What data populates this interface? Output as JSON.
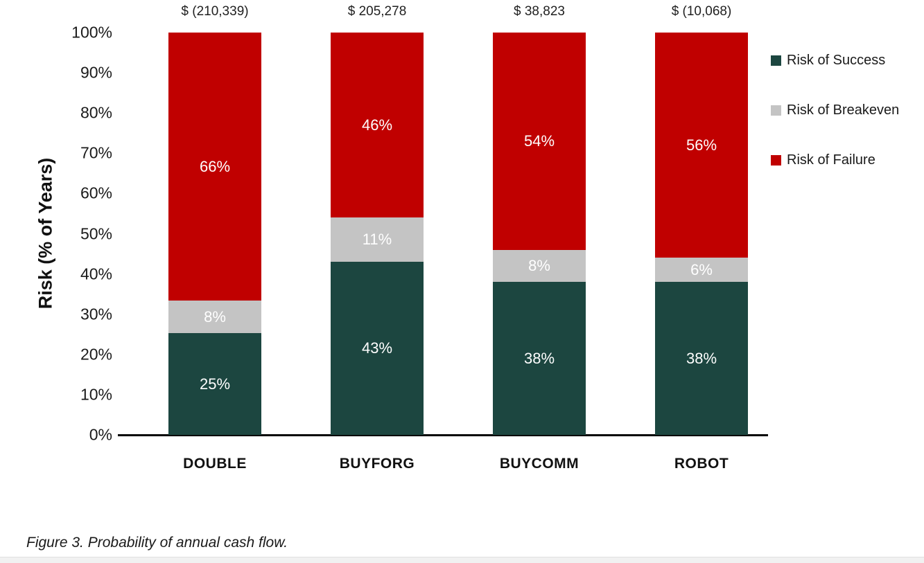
{
  "chart_data": {
    "type": "bar",
    "stacked": true,
    "categories": [
      "DOUBLE",
      "BUYFORG",
      "BUYCOMM",
      "ROBOT"
    ],
    "series": [
      {
        "name": "Risk of Success",
        "color": "#1C4640",
        "values": [
          25,
          43,
          38,
          38
        ]
      },
      {
        "name": "Risk of Breakeven",
        "color": "#C4C4C4",
        "values": [
          8,
          11,
          8,
          6
        ]
      },
      {
        "name": "Risk of Failure",
        "color": "#C00000",
        "values": [
          66,
          46,
          54,
          56
        ]
      }
    ],
    "segment_label_suffix": "%",
    "segment_label_color": "#FFFFFF",
    "column_top_labels": [
      "$ (210,339)",
      "$ 205,278",
      "$ 38,823",
      "$ (10,068)"
    ],
    "ylabel": "Risk (% of Years)",
    "yticks": [
      "0%",
      "10%",
      "20%",
      "30%",
      "40%",
      "50%",
      "60%",
      "70%",
      "80%",
      "90%",
      "100%"
    ],
    "ylim": [
      0,
      100
    ],
    "grid": false,
    "legend_position": "right"
  },
  "caption": "Figure 3. Probability of annual cash flow.",
  "colors": {
    "axis": "#000000",
    "background": "#FFFFFF",
    "bottom_strip": "#F1F1F1"
  }
}
